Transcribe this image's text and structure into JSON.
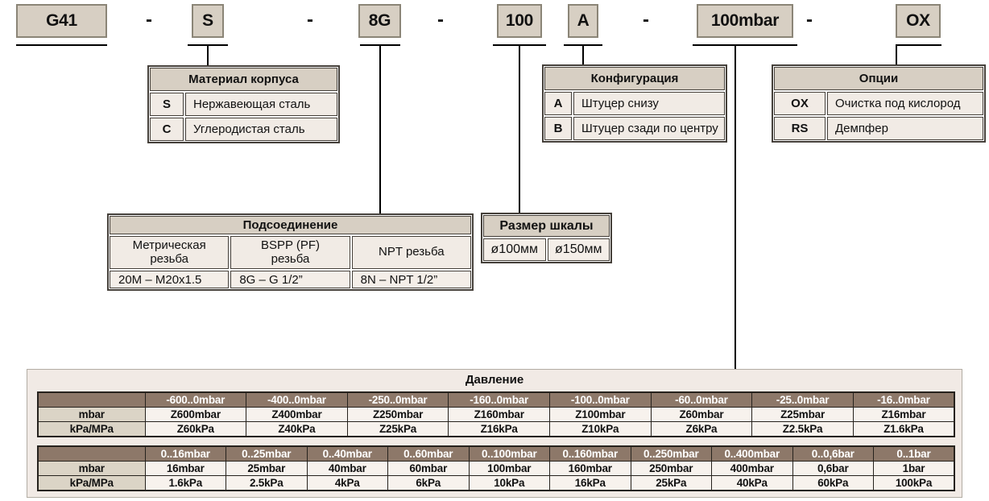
{
  "code_row": {
    "separator": "-",
    "parts": {
      "model": "G41",
      "material": "S",
      "connection": "8G",
      "dial_size": "100",
      "configuration": "A",
      "range": "100mbar",
      "options": "OX"
    }
  },
  "material_table": {
    "title": "Материал корпуса",
    "rows": [
      {
        "code": "S",
        "label": "Нержавеющая сталь"
      },
      {
        "code": "C",
        "label": "Углеродистая сталь"
      }
    ]
  },
  "configuration_table": {
    "title": "Конфигурация",
    "rows": [
      {
        "code": "A",
        "label": "Штуцер снизу"
      },
      {
        "code": "B",
        "label": "Штуцер сзади по центру"
      }
    ]
  },
  "options_table": {
    "title": "Опции",
    "rows": [
      {
        "code": "OX",
        "label": "Очистка под кислород"
      },
      {
        "code": "RS",
        "label": "Демпфер"
      }
    ]
  },
  "connection_table": {
    "title": "Подсоединение",
    "columns": [
      {
        "header": "Метрическая резьба",
        "value": "20M – M20x1.5"
      },
      {
        "header": "BSPP (PF) резьба",
        "value": "8G – G 1/2”"
      },
      {
        "header": "NPT резьба",
        "value": "8N – NPT 1/2”"
      }
    ]
  },
  "scale_table": {
    "title": "Размер шкалы",
    "values": [
      "ø100мм",
      "ø150мм"
    ]
  },
  "pressure_table": {
    "title": "Давление",
    "row_labels": [
      "mbar",
      "kPa/MPa"
    ],
    "blocks": [
      {
        "ranges": [
          "-600..0mbar",
          "-400..0mbar",
          "-250..0mbar",
          "-160..0mbar",
          "-100..0mbar",
          "-60..0mbar",
          "-25..0mbar",
          "-16..0mbar"
        ],
        "mbar": [
          "Z600mbar",
          "Z400mbar",
          "Z250mbar",
          "Z160mbar",
          "Z100mbar",
          "Z60mbar",
          "Z25mbar",
          "Z16mbar"
        ],
        "kpa": [
          "Z60kPa",
          "Z40kPa",
          "Z25kPa",
          "Z16kPa",
          "Z10kPa",
          "Z6kPa",
          "Z2.5kPa",
          "Z1.6kPa"
        ]
      },
      {
        "ranges": [
          "0..16mbar",
          "0..25mbar",
          "0..40mbar",
          "0..60mbar",
          "0..100mbar",
          "0..160mbar",
          "0..250mbar",
          "0..400mbar",
          "0..0,6bar",
          "0..1bar"
        ],
        "mbar": [
          "16mbar",
          "25mbar",
          "40mbar",
          "60mbar",
          "100mbar",
          "160mbar",
          "250mbar",
          "400mbar",
          "0,6bar",
          "1bar"
        ],
        "kpa": [
          "1.6kPa",
          "2.5kPa",
          "4kPa",
          "6kPa",
          "10kPa",
          "16kPa",
          "25kPa",
          "40kPa",
          "60kPa",
          "100kPa"
        ]
      }
    ]
  },
  "colors": {
    "box-fill": "#d7cfc3",
    "box-border": "#8b8577",
    "row-fill": "#f1ebe5",
    "table-border": "#45403a",
    "pressure-header": "#8d7869",
    "pressure-label": "#dbd4c6",
    "pressure-cell": "#f7f2ed",
    "container-fill": "#f1eae5",
    "container-border": "#b3ada4",
    "line": "#000000"
  }
}
